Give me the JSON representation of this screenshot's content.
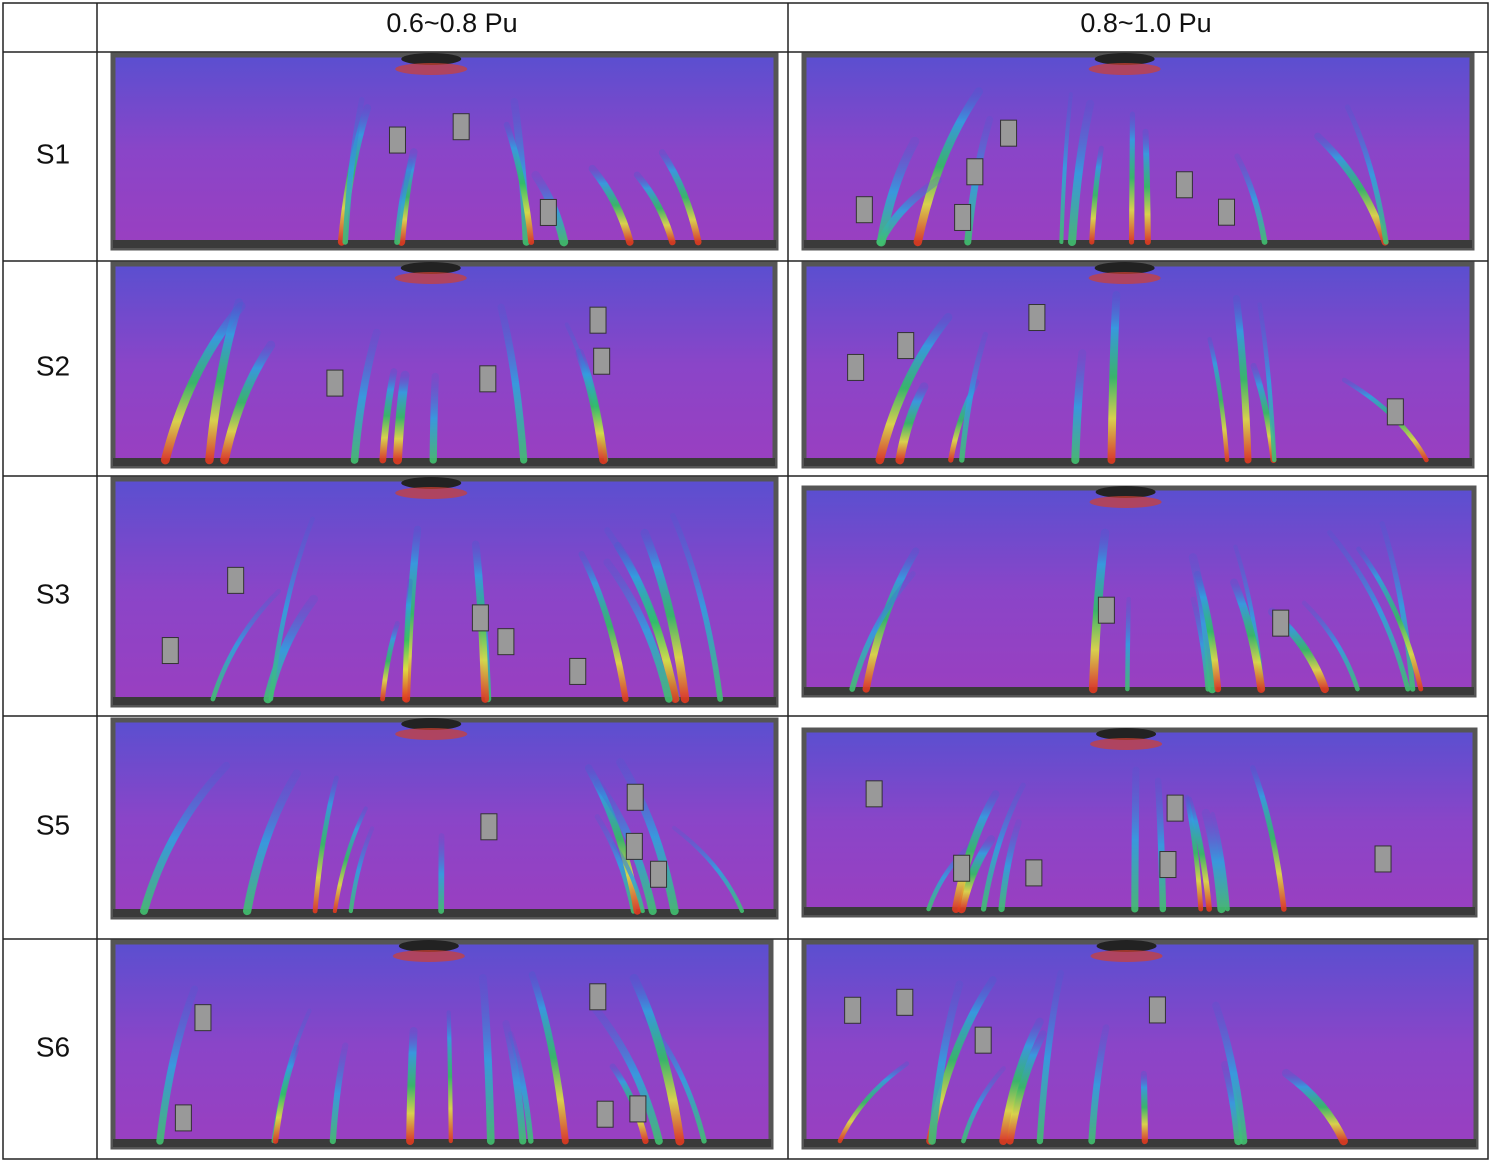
{
  "table": {
    "columns": [
      "0.6~0.8 Pu",
      "0.8~1.0 Pu"
    ],
    "rows": [
      "S1",
      "S2",
      "S3",
      "S5",
      "S6"
    ]
  }
}
